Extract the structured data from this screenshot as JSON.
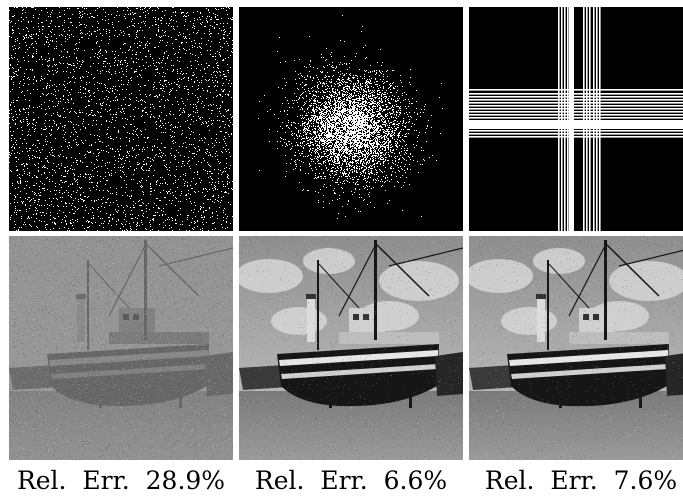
{
  "figure": {
    "columns": [
      {
        "mask": "uniform-random-mask",
        "reconstruction": "boat-reconstruction-noisy",
        "caption": "Rel.  Err.  28.9%"
      },
      {
        "mask": "variable-density-random-mask",
        "reconstruction": "boat-reconstruction-sharp",
        "caption": "Rel.  Err.  6.6%"
      },
      {
        "mask": "row-column-line-mask",
        "reconstruction": "boat-reconstruction-sharp",
        "caption": "Rel.  Err.  7.6%"
      }
    ]
  }
}
